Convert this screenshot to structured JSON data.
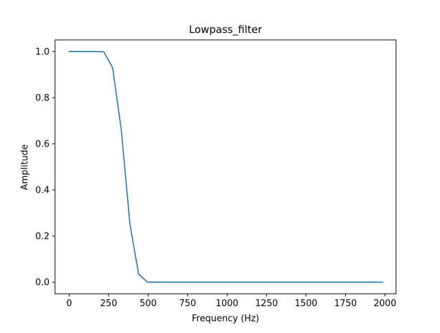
{
  "chart_data": {
    "type": "line",
    "title": "Lowpass_filter",
    "xlabel": "Frequency (Hz)",
    "ylabel": "Amplitude",
    "xlim": [
      -90,
      2070
    ],
    "ylim": [
      -0.05,
      1.05
    ],
    "xticks": [
      0,
      250,
      500,
      750,
      1000,
      1250,
      1500,
      1750,
      2000
    ],
    "yticks": [
      0.0,
      0.2,
      0.4,
      0.6,
      0.8,
      1.0
    ],
    "grid": false,
    "legend": "none",
    "series": [
      {
        "color": "#1f77b4",
        "x": [
          0,
          55,
          110,
          165,
          220,
          275,
          330,
          385,
          440,
          495,
          550,
          600,
          700,
          800,
          900,
          1000,
          1100,
          1200,
          1300,
          1400,
          1500,
          1600,
          1700,
          1800,
          1900,
          1985
        ],
        "y": [
          1.0,
          1.0,
          1.0,
          1.0,
          0.998,
          0.93,
          0.66,
          0.25,
          0.035,
          0.001,
          0.0,
          0.0,
          0.0,
          0.0,
          0.0,
          0.0,
          0.0,
          0.0,
          0.0,
          0.0,
          0.0,
          0.0,
          0.0,
          0.0,
          0.0,
          0.0
        ]
      }
    ]
  }
}
